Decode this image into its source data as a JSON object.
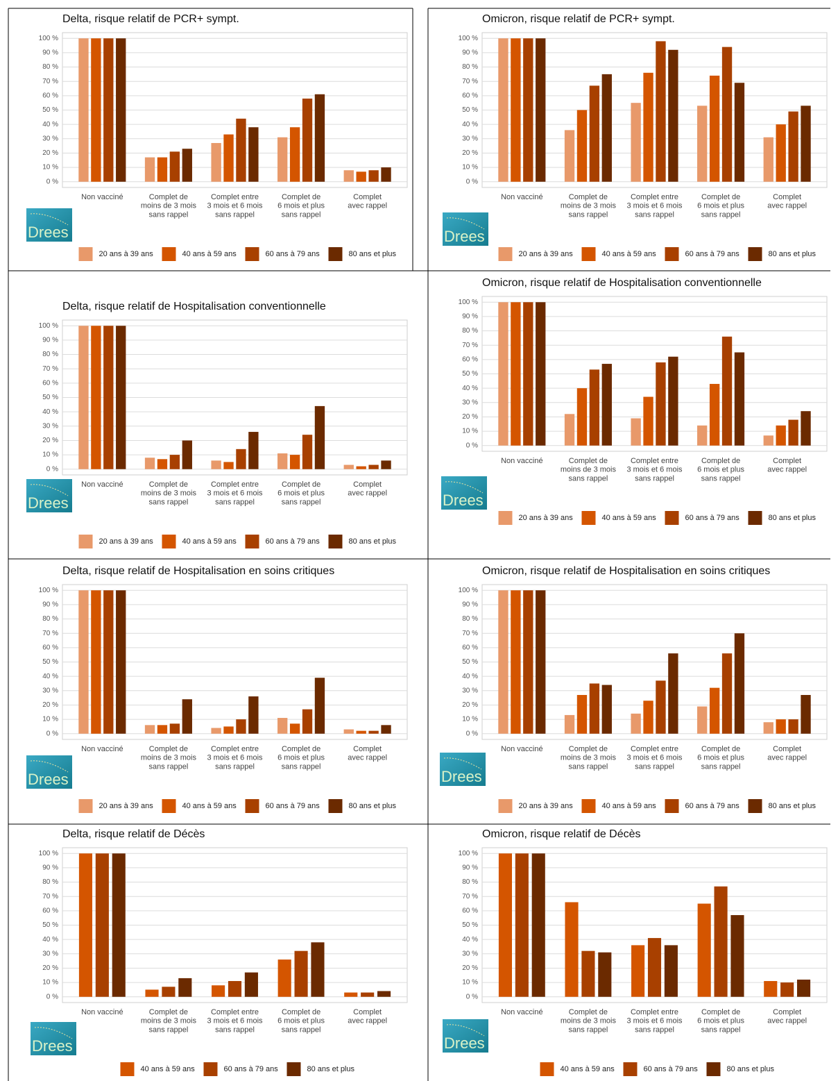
{
  "logo_text": "Drees",
  "chart_data": [
    {
      "type": "bar",
      "title": "Delta, risque relatif de PCR+ sympt.",
      "categories": [
        [
          "Non vacciné"
        ],
        [
          "Complet de",
          "moins de 3 mois",
          "sans rappel"
        ],
        [
          "Complet entre",
          "3 mois et 6 mois",
          "sans rappel"
        ],
        [
          "Complet de",
          "6 mois et plus",
          "sans rappel"
        ],
        [
          "Complet",
          "avec rappel"
        ]
      ],
      "series": [
        {
          "name": "20 ans à 39 ans",
          "color": "#e8996a",
          "values": [
            100,
            17,
            27,
            31,
            8
          ]
        },
        {
          "name": "40 ans à 59 ans",
          "color": "#d45500",
          "values": [
            100,
            17,
            33,
            38,
            7
          ]
        },
        {
          "name": "60 ans à 79 ans",
          "color": "#a84000",
          "values": [
            100,
            21,
            44,
            58,
            8
          ]
        },
        {
          "name": "80 ans et plus",
          "color": "#6b2a00",
          "values": [
            100,
            23,
            38,
            61,
            10
          ]
        }
      ],
      "ylim": [
        -4,
        104
      ],
      "yticks": [
        {
          "value": 0,
          "label": "0 %"
        },
        {
          "value": 10,
          "label": "10 %"
        },
        {
          "value": 20,
          "label": "20 %"
        },
        {
          "value": 30,
          "label": "30 %"
        },
        {
          "value": 40,
          "label": "40 %"
        },
        {
          "value": 50,
          "label": "50 %"
        },
        {
          "value": 60,
          "label": "60 %"
        },
        {
          "value": 70,
          "label": "70 %"
        },
        {
          "value": 80,
          "label": "80 %"
        },
        {
          "value": 90,
          "label": "90 %"
        },
        {
          "value": 100,
          "label": "100 %"
        }
      ],
      "grid": true
    },
    {
      "type": "bar",
      "title": "Omicron, risque relatif de PCR+ sympt.",
      "categories": [
        [
          "Non vacciné"
        ],
        [
          "Complet de",
          "moins de 3 mois",
          "sans rappel"
        ],
        [
          "Complet entre",
          "3 mois et 6 mois",
          "sans rappel"
        ],
        [
          "Complet de",
          "6 mois et plus",
          "sans rappel"
        ],
        [
          "Complet",
          "avec rappel"
        ]
      ],
      "series": [
        {
          "name": "20 ans à 39 ans",
          "color": "#e8996a",
          "values": [
            100,
            36,
            55,
            53,
            31
          ]
        },
        {
          "name": "40 ans à 59 ans",
          "color": "#d45500",
          "values": [
            100,
            50,
            76,
            74,
            40
          ]
        },
        {
          "name": "60 ans à 79 ans",
          "color": "#a84000",
          "values": [
            100,
            67,
            98,
            94,
            49
          ]
        },
        {
          "name": "80 ans et plus",
          "color": "#6b2a00",
          "values": [
            100,
            75,
            92,
            69,
            53
          ]
        }
      ],
      "ylim": [
        -4,
        104
      ],
      "yticks": [
        {
          "value": 0,
          "label": "0 %"
        },
        {
          "value": 10,
          "label": "10 %"
        },
        {
          "value": 20,
          "label": "20 %"
        },
        {
          "value": 30,
          "label": "30 %"
        },
        {
          "value": 40,
          "label": "40 %"
        },
        {
          "value": 50,
          "label": "50 %"
        },
        {
          "value": 60,
          "label": "60 %"
        },
        {
          "value": 70,
          "label": "70 %"
        },
        {
          "value": 80,
          "label": "80 %"
        },
        {
          "value": 90,
          "label": "90 %"
        },
        {
          "value": 100,
          "label": "100 %"
        }
      ],
      "grid": true
    },
    {
      "type": "bar",
      "title": "Delta, risque relatif de Hospitalisation conventionnelle",
      "categories": [
        [
          "Non vacciné"
        ],
        [
          "Complet de",
          "moins de 3 mois",
          "sans rappel"
        ],
        [
          "Complet entre",
          "3 mois et 6 mois",
          "sans rappel"
        ],
        [
          "Complet de",
          "6 mois et plus",
          "sans rappel"
        ],
        [
          "Complet",
          "avec rappel"
        ]
      ],
      "series": [
        {
          "name": "20 ans à 39 ans",
          "color": "#e8996a",
          "values": [
            100,
            8,
            6,
            11,
            3
          ]
        },
        {
          "name": "40 ans à 59 ans",
          "color": "#d45500",
          "values": [
            100,
            7,
            5,
            10,
            2
          ]
        },
        {
          "name": "60 ans à 79 ans",
          "color": "#a84000",
          "values": [
            100,
            10,
            14,
            24,
            3
          ]
        },
        {
          "name": "80 ans et plus",
          "color": "#6b2a00",
          "values": [
            100,
            20,
            26,
            44,
            6
          ]
        }
      ],
      "ylim": [
        -4,
        104
      ],
      "yticks": [
        {
          "value": 0,
          "label": "0 %"
        },
        {
          "value": 10,
          "label": "10 %"
        },
        {
          "value": 20,
          "label": "20 %"
        },
        {
          "value": 30,
          "label": "30 %"
        },
        {
          "value": 40,
          "label": "40 %"
        },
        {
          "value": 50,
          "label": "50 %"
        },
        {
          "value": 60,
          "label": "60 %"
        },
        {
          "value": 70,
          "label": "70 %"
        },
        {
          "value": 80,
          "label": "80 %"
        },
        {
          "value": 90,
          "label": "90 %"
        },
        {
          "value": 100,
          "label": "100 %"
        }
      ],
      "grid": true
    },
    {
      "type": "bar",
      "title": "Omicron, risque relatif de Hospitalisation conventionnelle",
      "categories": [
        [
          "Non vacciné"
        ],
        [
          "Complet de",
          "moins de 3 mois",
          "sans rappel"
        ],
        [
          "Complet entre",
          "3 mois et 6 mois",
          "sans rappel"
        ],
        [
          "Complet de",
          "6 mois et plus",
          "sans rappel"
        ],
        [
          "Complet",
          "avec rappel"
        ]
      ],
      "series": [
        {
          "name": "20 ans à 39 ans",
          "color": "#e8996a",
          "values": [
            100,
            22,
            19,
            14,
            7
          ]
        },
        {
          "name": "40 ans à 59 ans",
          "color": "#d45500",
          "values": [
            100,
            40,
            34,
            43,
            14
          ]
        },
        {
          "name": "60 ans à 79 ans",
          "color": "#a84000",
          "values": [
            100,
            53,
            58,
            76,
            18
          ]
        },
        {
          "name": "80 ans et plus",
          "color": "#6b2a00",
          "values": [
            100,
            57,
            62,
            65,
            24
          ]
        }
      ],
      "ylim": [
        -4,
        104
      ],
      "yticks": [
        {
          "value": 0,
          "label": "0 %"
        },
        {
          "value": 10,
          "label": "10 %"
        },
        {
          "value": 20,
          "label": "20 %"
        },
        {
          "value": 30,
          "label": "30 %"
        },
        {
          "value": 40,
          "label": "40 %"
        },
        {
          "value": 50,
          "label": "50 %"
        },
        {
          "value": 60,
          "label": "60 %"
        },
        {
          "value": 70,
          "label": "70 %"
        },
        {
          "value": 80,
          "label": "80 %"
        },
        {
          "value": 90,
          "label": "90 %"
        },
        {
          "value": 100,
          "label": "100 %"
        }
      ],
      "grid": true
    },
    {
      "type": "bar",
      "title": "Delta, risque relatif de Hospitalisation en soins critiques",
      "categories": [
        [
          "Non vacciné"
        ],
        [
          "Complet de",
          "moins de 3 mois",
          "sans rappel"
        ],
        [
          "Complet entre",
          "3 mois et 6 mois",
          "sans rappel"
        ],
        [
          "Complet de",
          "6 mois et plus",
          "sans rappel"
        ],
        [
          "Complet",
          "avec rappel"
        ]
      ],
      "series": [
        {
          "name": "20 ans à 39 ans",
          "color": "#e8996a",
          "values": [
            100,
            6,
            4,
            11,
            3
          ]
        },
        {
          "name": "40 ans à 59 ans",
          "color": "#d45500",
          "values": [
            100,
            6,
            5,
            7,
            2
          ]
        },
        {
          "name": "60 ans à 79 ans",
          "color": "#a84000",
          "values": [
            100,
            7,
            10,
            17,
            2
          ]
        },
        {
          "name": "80 ans et plus",
          "color": "#6b2a00",
          "values": [
            100,
            24,
            26,
            39,
            6
          ]
        }
      ],
      "ylim": [
        -4,
        104
      ],
      "yticks": [
        {
          "value": 0,
          "label": "0 %"
        },
        {
          "value": 10,
          "label": "10 %"
        },
        {
          "value": 20,
          "label": "20 %"
        },
        {
          "value": 30,
          "label": "30 %"
        },
        {
          "value": 40,
          "label": "40 %"
        },
        {
          "value": 50,
          "label": "50 %"
        },
        {
          "value": 60,
          "label": "60 %"
        },
        {
          "value": 70,
          "label": "70 %"
        },
        {
          "value": 80,
          "label": "80 %"
        },
        {
          "value": 90,
          "label": "90 %"
        },
        {
          "value": 100,
          "label": "100 %"
        }
      ],
      "grid": true
    },
    {
      "type": "bar",
      "title": "Omicron, risque relatif de Hospitalisation en soins critiques",
      "categories": [
        [
          "Non vacciné"
        ],
        [
          "Complet de",
          "moins de 3 mois",
          "sans rappel"
        ],
        [
          "Complet entre",
          "3 mois et 6 mois",
          "sans rappel"
        ],
        [
          "Complet de",
          "6 mois et plus",
          "sans rappel"
        ],
        [
          "Complet",
          "avec rappel"
        ]
      ],
      "series": [
        {
          "name": "20 ans à 39 ans",
          "color": "#e8996a",
          "values": [
            100,
            13,
            14,
            19,
            8
          ]
        },
        {
          "name": "40 ans à 59 ans",
          "color": "#d45500",
          "values": [
            100,
            27,
            23,
            32,
            10
          ]
        },
        {
          "name": "60 ans à 79 ans",
          "color": "#a84000",
          "values": [
            100,
            35,
            37,
            56,
            10
          ]
        },
        {
          "name": "80 ans et plus",
          "color": "#6b2a00",
          "values": [
            100,
            34,
            56,
            70,
            27
          ]
        }
      ],
      "ylim": [
        -4,
        104
      ],
      "yticks": [
        {
          "value": 0,
          "label": "0 %"
        },
        {
          "value": 10,
          "label": "10 %"
        },
        {
          "value": 20,
          "label": "20 %"
        },
        {
          "value": 30,
          "label": "30 %"
        },
        {
          "value": 40,
          "label": "40 %"
        },
        {
          "value": 50,
          "label": "50 %"
        },
        {
          "value": 60,
          "label": "60 %"
        },
        {
          "value": 70,
          "label": "70 %"
        },
        {
          "value": 80,
          "label": "80 %"
        },
        {
          "value": 90,
          "label": "90 %"
        },
        {
          "value": 100,
          "label": "100 %"
        }
      ],
      "grid": true
    },
    {
      "type": "bar",
      "title": "Delta, risque relatif de Décès",
      "categories": [
        [
          "Non vacciné"
        ],
        [
          "Complet de",
          "moins de 3 mois",
          "sans rappel"
        ],
        [
          "Complet entre",
          "3 mois et 6 mois",
          "sans rappel"
        ],
        [
          "Complet de",
          "6 mois et plus",
          "sans rappel"
        ],
        [
          "Complet",
          "avec rappel"
        ]
      ],
      "series": [
        {
          "name": "40 ans à 59 ans",
          "color": "#d45500",
          "values": [
            100,
            5,
            8,
            26,
            3
          ]
        },
        {
          "name": "60 ans à 79 ans",
          "color": "#a84000",
          "values": [
            100,
            7,
            11,
            32,
            3
          ]
        },
        {
          "name": "80 ans et plus",
          "color": "#6b2a00",
          "values": [
            100,
            13,
            17,
            38,
            4
          ]
        }
      ],
      "ylim": [
        -4,
        104
      ],
      "yticks": [
        {
          "value": 0,
          "label": "0 %"
        },
        {
          "value": 10,
          "label": "10 %"
        },
        {
          "value": 20,
          "label": "20 %"
        },
        {
          "value": 30,
          "label": "30 %"
        },
        {
          "value": 40,
          "label": "40 %"
        },
        {
          "value": 50,
          "label": "50 %"
        },
        {
          "value": 60,
          "label": "60 %"
        },
        {
          "value": 70,
          "label": "70 %"
        },
        {
          "value": 80,
          "label": "80 %"
        },
        {
          "value": 90,
          "label": "90 %"
        },
        {
          "value": 100,
          "label": "100 %"
        }
      ],
      "grid": true
    },
    {
      "type": "bar",
      "title": "Omicron, risque relatif de Décès",
      "categories": [
        [
          "Non vacciné"
        ],
        [
          "Complet de",
          "moins de 3 mois",
          "sans rappel"
        ],
        [
          "Complet entre",
          "3 mois et 6 mois",
          "sans rappel"
        ],
        [
          "Complet de",
          "6 mois et plus",
          "sans rappel"
        ],
        [
          "Complet",
          "avec rappel"
        ]
      ],
      "series": [
        {
          "name": "40 ans à 59 ans",
          "color": "#d45500",
          "values": [
            100,
            66,
            36,
            65,
            11
          ]
        },
        {
          "name": "60 ans à 79 ans",
          "color": "#a84000",
          "values": [
            100,
            32,
            41,
            77,
            10
          ]
        },
        {
          "name": "80 ans et plus",
          "color": "#6b2a00",
          "values": [
            100,
            31,
            36,
            57,
            12
          ]
        }
      ],
      "ylim": [
        -4,
        104
      ],
      "yticks": [
        {
          "value": 0,
          "label": "0 %"
        },
        {
          "value": 10,
          "label": "10 %"
        },
        {
          "value": 20,
          "label": "20 %"
        },
        {
          "value": 30,
          "label": "30 %"
        },
        {
          "value": 40,
          "label": "40 %"
        },
        {
          "value": 50,
          "label": "50 %"
        },
        {
          "value": 60,
          "label": "60 %"
        },
        {
          "value": 70,
          "label": "70 %"
        },
        {
          "value": 80,
          "label": "80 %"
        },
        {
          "value": 90,
          "label": "90 %"
        },
        {
          "value": 100,
          "label": "100 %"
        }
      ],
      "grid": true
    }
  ]
}
